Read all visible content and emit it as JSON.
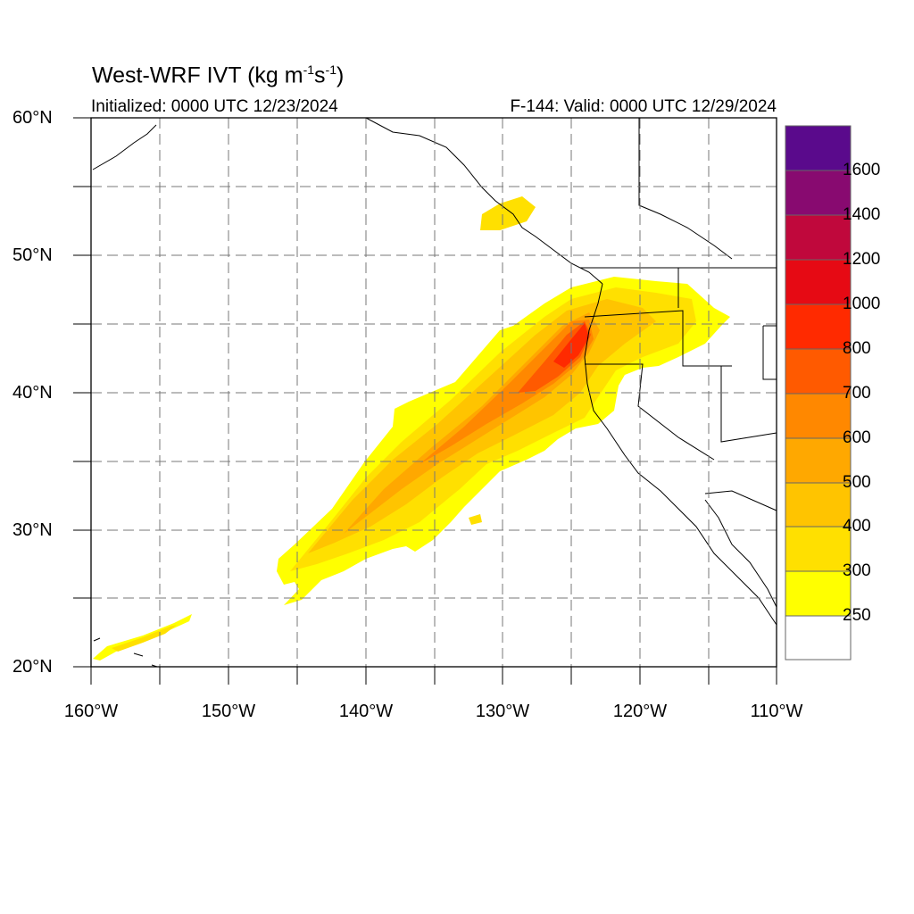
{
  "title": {
    "main": "West-WRF IVT (kg m",
    "exp1": "-1",
    "mid": "s",
    "exp2": "-1",
    "end": ")"
  },
  "init_text": "Initialized: 0000 UTC 12/23/2024",
  "valid_text": "F-144: Valid: 0000 UTC 12/29/2024",
  "lat_labels": [
    "60°N",
    "50°N",
    "40°N",
    "30°N",
    "20°N"
  ],
  "lon_labels": [
    "160°W",
    "150°W",
    "140°W",
    "130°W",
    "120°W",
    "110°W"
  ],
  "colorbar": {
    "labels": [
      "1600",
      "1400",
      "1200",
      "1000",
      "800",
      "700",
      "600",
      "500",
      "400",
      "300",
      "250"
    ],
    "colors": [
      "#5a0a8c",
      "#880a70",
      "#c0083c",
      "#e60a14",
      "#ff2a00",
      "#ff5a00",
      "#ff8800",
      "#ffa800",
      "#ffc400",
      "#ffe000",
      "#ffff00",
      "#ffffff"
    ]
  }
}
